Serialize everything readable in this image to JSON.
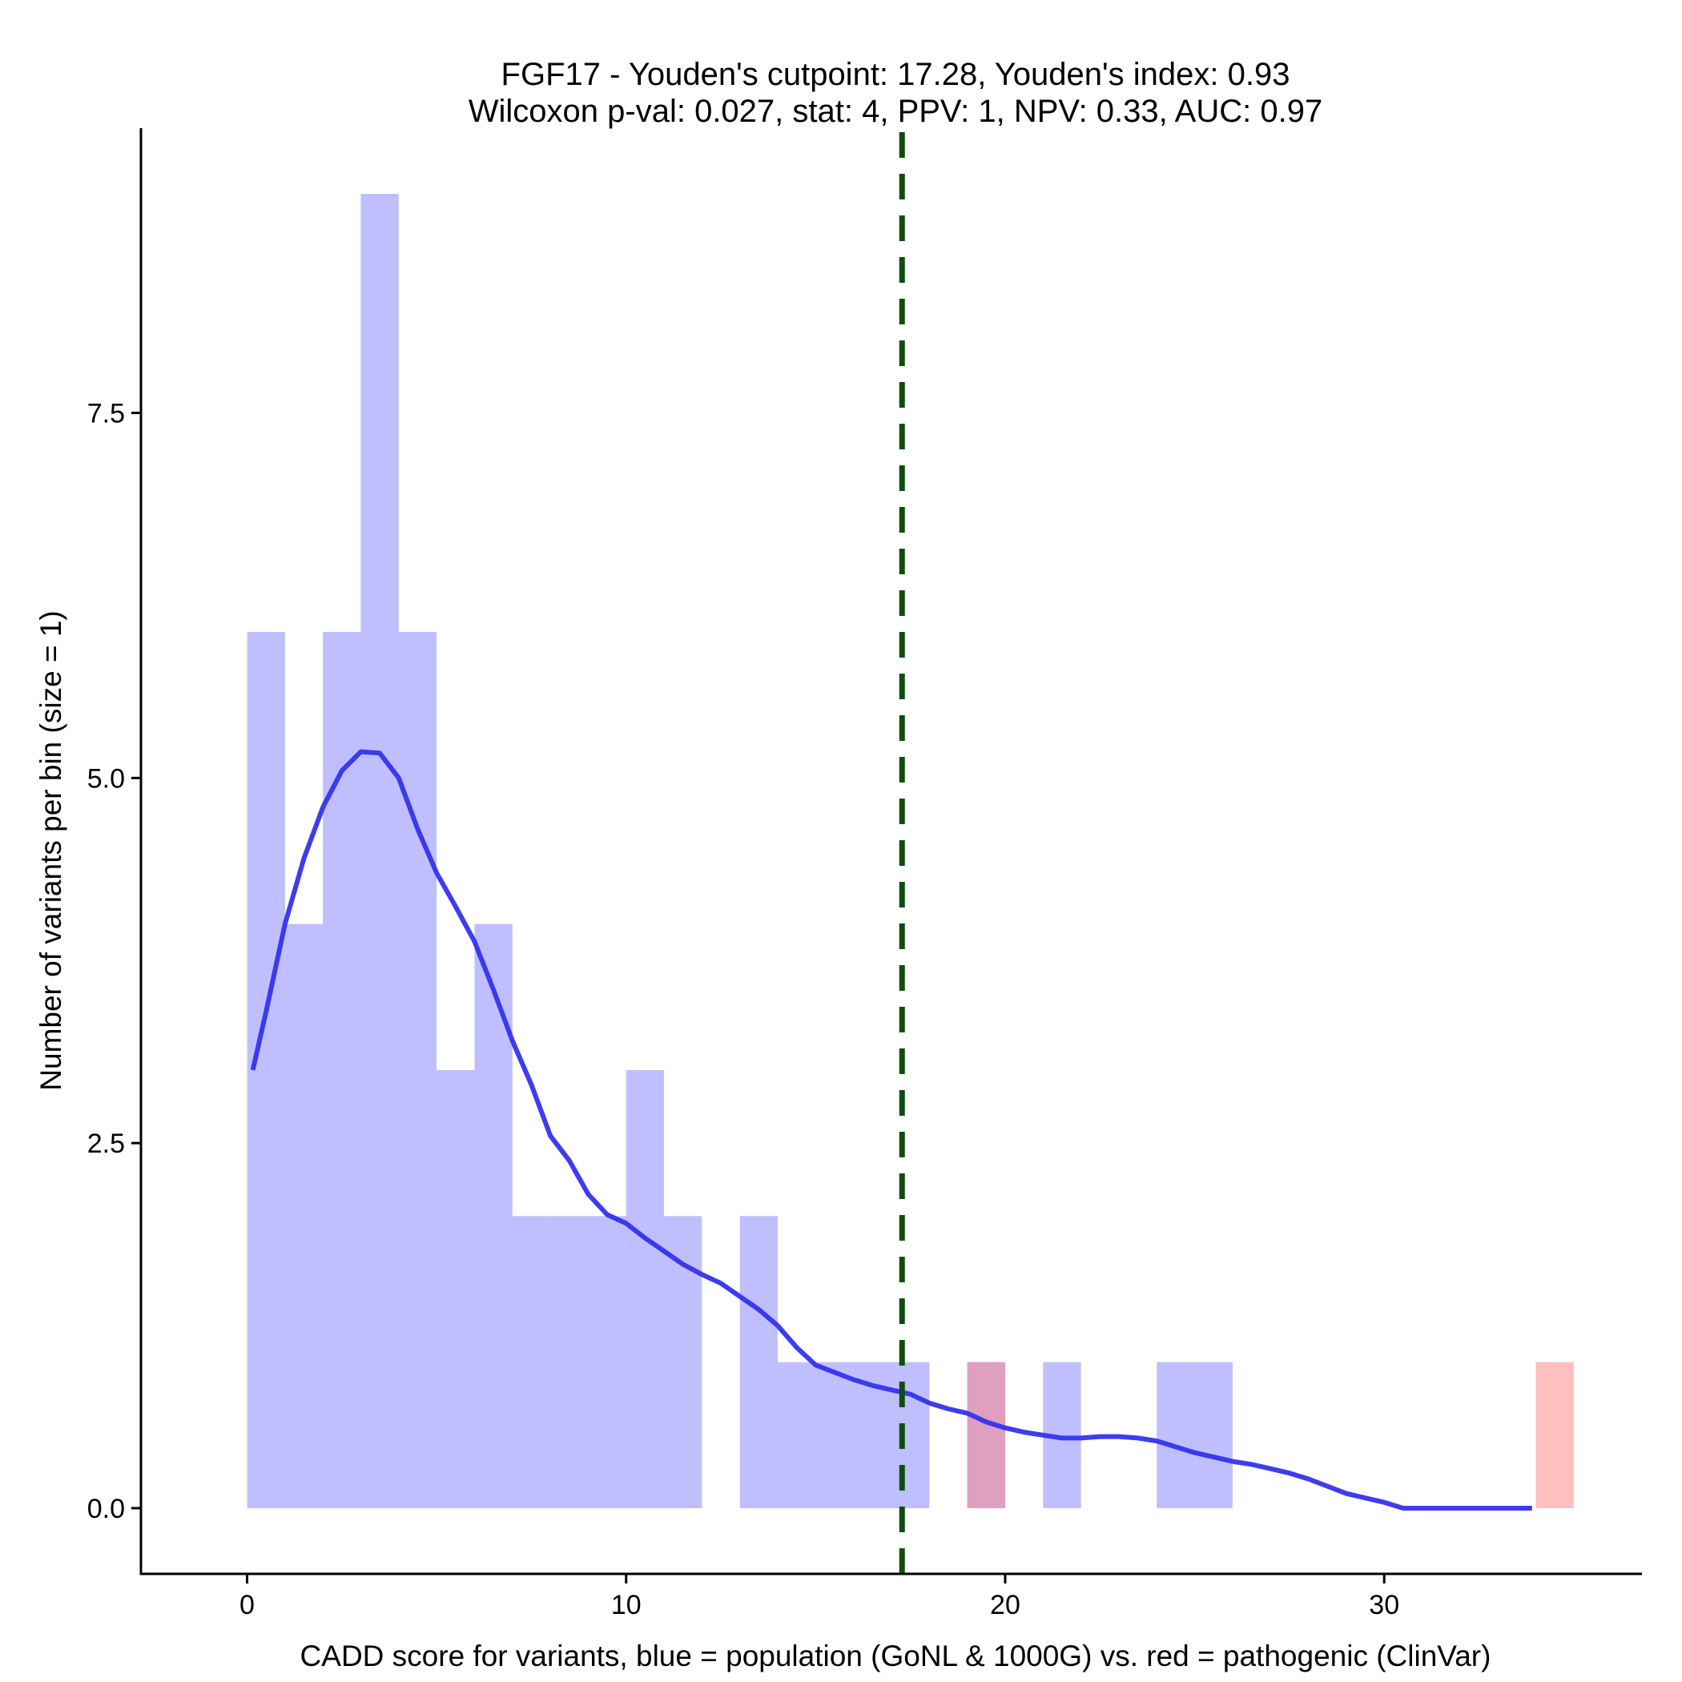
{
  "chart_data": {
    "type": "bar",
    "title_line1": "FGF17 - Youden's cutpoint: 17.28, Youden's index: 0.93",
    "title_line2": "Wilcoxon p-val: 0.027, stat: 4, PPV: 1, NPV: 0.33, AUC: 0.97",
    "xlabel": "CADD score for variants, blue = population (GoNL & 1000G) vs. red = pathogenic (ClinVar)",
    "ylabel": "Number of variants per bin (size = 1)",
    "xlim": [
      -2.8,
      36.8
    ],
    "ylim": [
      -0.45,
      9.45
    ],
    "x_ticks": [
      0,
      10,
      20,
      30
    ],
    "x_tick_labels": [
      "0",
      "10",
      "20",
      "30"
    ],
    "y_ticks": [
      0,
      2.5,
      5,
      7.5
    ],
    "y_tick_labels": [
      "0.0",
      "2.5",
      "5.0",
      "7.5"
    ],
    "bin_width": 1,
    "series": [
      {
        "name": "population (GoNL & 1000G)",
        "color": "#8080ff",
        "opacity": 0.5,
        "bins": [
          {
            "start": 0,
            "count": 6
          },
          {
            "start": 1,
            "count": 4
          },
          {
            "start": 2,
            "count": 6
          },
          {
            "start": 3,
            "count": 9
          },
          {
            "start": 4,
            "count": 6
          },
          {
            "start": 5,
            "count": 3
          },
          {
            "start": 6,
            "count": 4
          },
          {
            "start": 7,
            "count": 2
          },
          {
            "start": 8,
            "count": 2
          },
          {
            "start": 9,
            "count": 2
          },
          {
            "start": 10,
            "count": 3
          },
          {
            "start": 11,
            "count": 2
          },
          {
            "start": 13,
            "count": 2
          },
          {
            "start": 14,
            "count": 1
          },
          {
            "start": 15,
            "count": 1
          },
          {
            "start": 16,
            "count": 1
          },
          {
            "start": 17,
            "count": 1
          },
          {
            "start": 19,
            "count": 1
          },
          {
            "start": 21,
            "count": 1
          },
          {
            "start": 24,
            "count": 1
          },
          {
            "start": 25,
            "count": 1
          }
        ]
      },
      {
        "name": "pathogenic (ClinVar)",
        "color": "#ff8080",
        "opacity": 0.5,
        "bins": [
          {
            "start": 19,
            "count": 1
          },
          {
            "start": 34,
            "count": 1
          }
        ]
      }
    ],
    "density": {
      "name": "population density (scaled)",
      "color": "#3333ee",
      "x": [
        0.15,
        0.5,
        1,
        1.5,
        2,
        2.5,
        3,
        3.5,
        4,
        4.5,
        5,
        5.5,
        6,
        6.5,
        7,
        7.5,
        8,
        8.5,
        9,
        9.5,
        10,
        10.5,
        11,
        11.5,
        12,
        12.5,
        13,
        13.5,
        14,
        14.5,
        15,
        15.5,
        16,
        16.5,
        17,
        17.5,
        18,
        18.5,
        19,
        19.5,
        20,
        20.5,
        21,
        21.5,
        22,
        22.5,
        23,
        23.5,
        24,
        24.5,
        25,
        25.5,
        26,
        26.5,
        27,
        27.5,
        28,
        28.5,
        29,
        29.5,
        30,
        30.5,
        31,
        32,
        33,
        33.9
      ],
      "y": [
        3.0,
        3.4,
        4.0,
        4.45,
        4.8,
        5.05,
        5.18,
        5.17,
        5.0,
        4.65,
        4.35,
        4.12,
        3.88,
        3.55,
        3.2,
        2.9,
        2.55,
        2.38,
        2.15,
        2.01,
        1.95,
        1.85,
        1.76,
        1.67,
        1.6,
        1.54,
        1.45,
        1.36,
        1.25,
        1.1,
        0.98,
        0.93,
        0.88,
        0.84,
        0.81,
        0.78,
        0.72,
        0.68,
        0.65,
        0.59,
        0.55,
        0.52,
        0.5,
        0.48,
        0.48,
        0.49,
        0.49,
        0.48,
        0.46,
        0.42,
        0.38,
        0.35,
        0.32,
        0.3,
        0.27,
        0.24,
        0.2,
        0.15,
        0.1,
        0.07,
        0.04,
        0.0,
        0.0,
        0.0,
        0.0,
        0.0
      ]
    },
    "cutpoint": {
      "x": 17.28,
      "color": "#0d4d0d",
      "style": "dashed"
    }
  }
}
